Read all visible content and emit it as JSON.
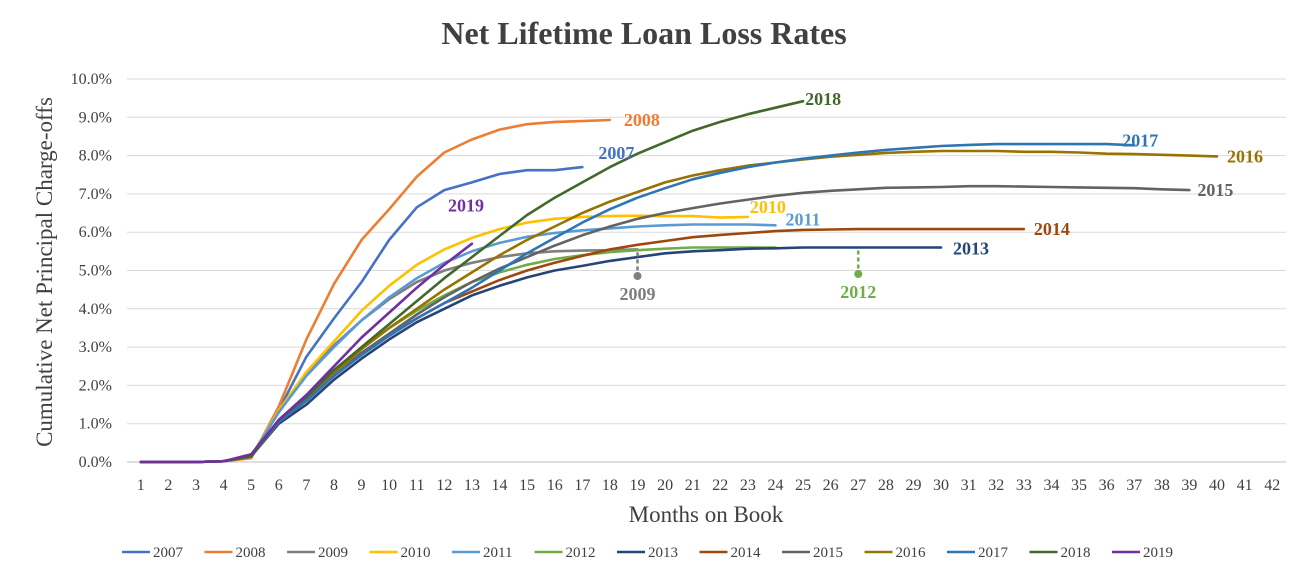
{
  "chart_data": {
    "type": "line",
    "title": "Net Lifetime Loan Loss Rates",
    "xlabel": "Months on Book",
    "ylabel": "Cumulative Net Principal Charge-offs",
    "x_ticks": [
      "1",
      "2",
      "3",
      "4",
      "5",
      "6",
      "7",
      "8",
      "9",
      "10",
      "11",
      "12",
      "13",
      "14",
      "15",
      "16",
      "17",
      "18",
      "19",
      "20",
      "21",
      "22",
      "23",
      "24",
      "25",
      "26",
      "27",
      "28",
      "29",
      "30",
      "31",
      "32",
      "33",
      "34",
      "35",
      "36",
      "37",
      "38",
      "39",
      "40",
      "41",
      "42"
    ],
    "y_ticks": [
      "0.0%",
      "1.0%",
      "2.0%",
      "3.0%",
      "4.0%",
      "5.0%",
      "6.0%",
      "7.0%",
      "8.0%",
      "9.0%",
      "10.0%"
    ],
    "xlim": [
      1,
      42
    ],
    "ylim": [
      0,
      10
    ],
    "y_unit": "%",
    "grid": "horizontal",
    "legend_position": "bottom",
    "series": [
      {
        "name": "2007",
        "color": "#4472c4",
        "x": [
          1,
          2,
          3,
          4,
          5,
          6,
          7,
          8,
          9,
          10,
          11,
          12,
          13,
          14,
          15,
          16,
          17
        ],
        "values": [
          0,
          0,
          0,
          0.02,
          0.15,
          1.35,
          2.75,
          3.75,
          4.7,
          5.8,
          6.65,
          7.1,
          7.3,
          7.52,
          7.62,
          7.62,
          7.7
        ]
      },
      {
        "name": "2008",
        "color": "#ed7d31",
        "x": [
          1,
          2,
          3,
          4,
          5,
          6,
          7,
          8,
          9,
          10,
          11,
          12,
          13,
          14,
          15,
          16,
          17,
          18
        ],
        "values": [
          0,
          0,
          0,
          0.02,
          0.1,
          1.45,
          3.2,
          4.65,
          5.8,
          6.6,
          7.45,
          8.08,
          8.42,
          8.68,
          8.82,
          8.88,
          8.9,
          8.93
        ]
      },
      {
        "name": "2009",
        "color": "#7f7f7f",
        "x": [
          1,
          2,
          3,
          4,
          5,
          6,
          7,
          8,
          9,
          10,
          11,
          12,
          13,
          14,
          15,
          16,
          17,
          18,
          19
        ],
        "values": [
          0,
          0,
          0,
          0.02,
          0.15,
          1.3,
          2.3,
          3.05,
          3.7,
          4.25,
          4.7,
          5.0,
          5.2,
          5.35,
          5.45,
          5.5,
          5.52,
          5.53,
          5.55
        ]
      },
      {
        "name": "2010",
        "color": "#ffc000",
        "x": [
          1,
          2,
          3,
          4,
          5,
          6,
          7,
          8,
          9,
          10,
          11,
          12,
          13,
          14,
          15,
          16,
          17,
          18,
          19,
          20,
          21,
          22,
          23
        ],
        "values": [
          0,
          0,
          0,
          0.02,
          0.15,
          1.35,
          2.35,
          3.15,
          3.95,
          4.6,
          5.15,
          5.55,
          5.85,
          6.08,
          6.25,
          6.35,
          6.4,
          6.42,
          6.43,
          6.42,
          6.42,
          6.38,
          6.4
        ]
      },
      {
        "name": "2011",
        "color": "#5b9bd5",
        "x": [
          1,
          2,
          3,
          4,
          5,
          6,
          7,
          8,
          9,
          10,
          11,
          12,
          13,
          14,
          15,
          16,
          17,
          18,
          19,
          20,
          21,
          22,
          23,
          24
        ],
        "values": [
          0,
          0,
          0,
          0.02,
          0.15,
          1.3,
          2.25,
          3.0,
          3.7,
          4.3,
          4.8,
          5.2,
          5.5,
          5.72,
          5.88,
          5.98,
          6.05,
          6.1,
          6.15,
          6.18,
          6.2,
          6.2,
          6.2,
          6.18
        ]
      },
      {
        "name": "2012",
        "color": "#70ad47",
        "x": [
          1,
          2,
          3,
          4,
          5,
          6,
          7,
          8,
          9,
          10,
          11,
          12,
          13,
          14,
          15,
          16,
          17,
          18,
          19,
          20,
          21,
          22,
          23,
          24
        ],
        "values": [
          0,
          0,
          0,
          0.02,
          0.15,
          1.1,
          1.7,
          2.35,
          2.95,
          3.5,
          3.95,
          4.35,
          4.7,
          4.95,
          5.15,
          5.3,
          5.4,
          5.48,
          5.53,
          5.57,
          5.6,
          5.6,
          5.6,
          5.6
        ]
      },
      {
        "name": "2013",
        "color": "#264478",
        "x": [
          1,
          2,
          3,
          4,
          5,
          6,
          7,
          8,
          9,
          10,
          11,
          12,
          13,
          14,
          15,
          16,
          17,
          18,
          19,
          20,
          21,
          22,
          23,
          24,
          25,
          26,
          27,
          28,
          29,
          30
        ],
        "values": [
          0,
          0,
          0,
          0.02,
          0.15,
          1.0,
          1.5,
          2.15,
          2.7,
          3.2,
          3.65,
          4.0,
          4.35,
          4.6,
          4.82,
          5.0,
          5.12,
          5.25,
          5.35,
          5.45,
          5.5,
          5.53,
          5.57,
          5.58,
          5.6,
          5.6,
          5.6,
          5.6,
          5.6,
          5.6
        ]
      },
      {
        "name": "2014",
        "color": "#9e480e",
        "x": [
          1,
          2,
          3,
          4,
          5,
          6,
          7,
          8,
          9,
          10,
          11,
          12,
          13,
          14,
          15,
          16,
          17,
          18,
          19,
          20,
          21,
          22,
          23,
          24,
          25,
          26,
          27,
          28,
          29,
          30,
          31,
          32,
          33
        ],
        "values": [
          0,
          0,
          0,
          0.02,
          0.15,
          1.05,
          1.6,
          2.25,
          2.8,
          3.3,
          3.75,
          4.15,
          4.45,
          4.75,
          5.0,
          5.2,
          5.38,
          5.55,
          5.67,
          5.77,
          5.87,
          5.93,
          5.98,
          6.03,
          6.06,
          6.07,
          6.08,
          6.08,
          6.08,
          6.08,
          6.08,
          6.08,
          6.08
        ]
      },
      {
        "name": "2015",
        "color": "#636363",
        "x": [
          1,
          2,
          3,
          4,
          5,
          6,
          7,
          8,
          9,
          10,
          11,
          12,
          13,
          14,
          15,
          16,
          17,
          18,
          19,
          20,
          21,
          22,
          23,
          24,
          25,
          26,
          27,
          28,
          29,
          30,
          31,
          32,
          33,
          34,
          35,
          36,
          37,
          38,
          39
        ],
        "values": [
          0,
          0,
          0,
          0.02,
          0.15,
          1.05,
          1.65,
          2.25,
          2.85,
          3.35,
          3.85,
          4.3,
          4.7,
          5.05,
          5.35,
          5.65,
          5.92,
          6.15,
          6.35,
          6.5,
          6.63,
          6.75,
          6.85,
          6.95,
          7.03,
          7.08,
          7.12,
          7.16,
          7.17,
          7.18,
          7.2,
          7.2,
          7.19,
          7.18,
          7.17,
          7.16,
          7.15,
          7.12,
          7.1
        ]
      },
      {
        "name": "2016",
        "color": "#997300",
        "x": [
          1,
          2,
          3,
          4,
          5,
          6,
          7,
          8,
          9,
          10,
          11,
          12,
          13,
          14,
          15,
          16,
          17,
          18,
          19,
          20,
          21,
          22,
          23,
          24,
          25,
          26,
          27,
          28,
          29,
          30,
          31,
          32,
          33,
          34,
          35,
          36,
          37,
          38,
          39,
          40
        ],
        "values": [
          0,
          0,
          0,
          0.02,
          0.15,
          1.05,
          1.65,
          2.3,
          2.95,
          3.5,
          4.0,
          4.5,
          4.95,
          5.4,
          5.8,
          6.15,
          6.5,
          6.8,
          7.05,
          7.3,
          7.48,
          7.62,
          7.74,
          7.82,
          7.9,
          7.97,
          8.02,
          8.07,
          8.1,
          8.12,
          8.12,
          8.12,
          8.1,
          8.1,
          8.08,
          8.05,
          8.04,
          8.02,
          8.0,
          7.98
        ]
      },
      {
        "name": "2017",
        "color": "#2e75b6",
        "x": [
          1,
          2,
          3,
          4,
          5,
          6,
          7,
          8,
          9,
          10,
          11,
          12,
          13,
          14,
          15,
          16,
          17,
          18,
          19,
          20,
          21,
          22,
          23,
          24,
          25,
          26,
          27,
          28,
          29,
          30,
          31,
          32,
          33,
          34,
          35,
          36,
          37
        ],
        "values": [
          0,
          0,
          0,
          0.02,
          0.15,
          1.05,
          1.6,
          2.25,
          2.8,
          3.3,
          3.75,
          4.15,
          4.55,
          5.0,
          5.45,
          5.85,
          6.25,
          6.6,
          6.9,
          7.15,
          7.38,
          7.55,
          7.7,
          7.82,
          7.92,
          8.0,
          8.08,
          8.15,
          8.2,
          8.25,
          8.28,
          8.3,
          8.3,
          8.3,
          8.3,
          8.3,
          8.27
        ]
      },
      {
        "name": "2018",
        "color": "#43682b",
        "x": [
          1,
          2,
          3,
          4,
          5,
          6,
          7,
          8,
          9,
          10,
          11,
          12,
          13,
          14,
          15,
          16,
          17,
          18,
          19,
          20,
          21,
          22,
          23,
          24,
          25
        ],
        "values": [
          0,
          0,
          0,
          0.02,
          0.15,
          1.1,
          1.7,
          2.4,
          3.0,
          3.6,
          4.2,
          4.8,
          5.35,
          5.9,
          6.45,
          6.9,
          7.3,
          7.7,
          8.05,
          8.35,
          8.65,
          8.88,
          9.08,
          9.25,
          9.42
        ]
      },
      {
        "name": "2019",
        "color": "#7030a0",
        "x": [
          1,
          2,
          3,
          4,
          5,
          6,
          7,
          8,
          9,
          10,
          11,
          12,
          13
        ],
        "values": [
          0,
          0,
          0,
          0.02,
          0.2,
          1.1,
          1.75,
          2.5,
          3.25,
          3.9,
          4.55,
          5.15,
          5.7
        ]
      }
    ],
    "annotations": [
      {
        "text": "2007",
        "series": "2007",
        "color": "#4472c4"
      },
      {
        "text": "2008",
        "series": "2008",
        "color": "#ed7d31"
      },
      {
        "text": "2009",
        "series": "2009",
        "color": "#7f7f7f"
      },
      {
        "text": "2010",
        "series": "2010",
        "color": "#ffc000"
      },
      {
        "text": "2011",
        "series": "2011",
        "color": "#5b9bd5"
      },
      {
        "text": "2012",
        "series": "2012",
        "color": "#70ad47"
      },
      {
        "text": "2013",
        "series": "2013",
        "color": "#264478"
      },
      {
        "text": "2014",
        "series": "2014",
        "color": "#9e480e"
      },
      {
        "text": "2015",
        "series": "2015",
        "color": "#636363"
      },
      {
        "text": "2016",
        "series": "2016",
        "color": "#997300"
      },
      {
        "text": "2017",
        "series": "2017",
        "color": "#2e75b6"
      },
      {
        "text": "2018",
        "series": "2018",
        "color": "#43682b"
      },
      {
        "text": "2019",
        "series": "2019",
        "color": "#7030a0"
      }
    ]
  }
}
